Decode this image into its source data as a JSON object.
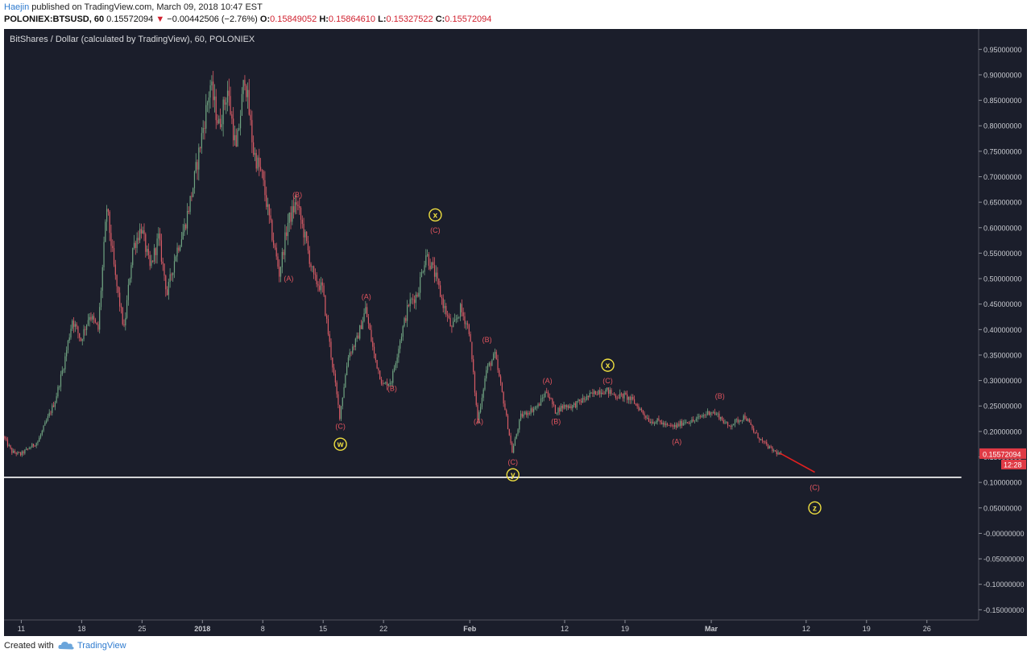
{
  "header": {
    "author": "Haejin",
    "published_text": "published on TradingView.com, March 09, 2018 10:47 EST",
    "symbol": "POLONIEX:BTSUSD, 60",
    "last_price": "0.15572094",
    "change_arrow": "▼",
    "change": "−0.00442506 (−2.76%)",
    "open_label": "O:",
    "open": "0.15849052",
    "high_label": "H:",
    "high": "0.15864610",
    "low_label": "L:",
    "low": "0.15327522",
    "close_label": "C:",
    "close": "0.15572094"
  },
  "footer": {
    "created_with": "Created with",
    "brand": "TradingView"
  },
  "colors": {
    "background": "#1b1e2b",
    "up_candle": "#6fa381",
    "down_candle": "#d95c66",
    "wave_label": "#e0545e",
    "degree_label": "#f0e040",
    "support_line": "#ffffff",
    "projection_line": "#e02020",
    "price_tag": "#e03a45"
  },
  "chart_data": {
    "type": "candlestick",
    "title": "BitShares / Dollar (calculated by TradingView), 60, POLONIEX",
    "interval": "60",
    "y_axis_position": "right",
    "ylim": [
      -0.17,
      0.99
    ],
    "y_ticks": [
      "0.95000000",
      "0.90000000",
      "0.85000000",
      "0.80000000",
      "0.75000000",
      "0.70000000",
      "0.65000000",
      "0.60000000",
      "0.55000000",
      "0.50000000",
      "0.45000000",
      "0.40000000",
      "0.35000000",
      "0.30000000",
      "0.25000000",
      "0.20000000",
      "0.15000000",
      "0.10000000",
      "0.05000000",
      "-0.00000000",
      "-0.05000000",
      "-0.10000000",
      "-0.15000000"
    ],
    "x_range": [
      "2017-12-09",
      "2018-04-01"
    ],
    "x_ticks": [
      {
        "date": "2017-12-11",
        "label": "11"
      },
      {
        "date": "2017-12-18",
        "label": "18"
      },
      {
        "date": "2017-12-25",
        "label": "25"
      },
      {
        "date": "2018-01-01",
        "label": "2018"
      },
      {
        "date": "2018-01-08",
        "label": "8"
      },
      {
        "date": "2018-01-15",
        "label": "15"
      },
      {
        "date": "2018-01-22",
        "label": "22"
      },
      {
        "date": "2018-02-01",
        "label": "Feb"
      },
      {
        "date": "2018-02-12",
        "label": "12"
      },
      {
        "date": "2018-02-19",
        "label": "19"
      },
      {
        "date": "2018-03-01",
        "label": "Mar"
      },
      {
        "date": "2018-03-12",
        "label": "12"
      },
      {
        "date": "2018-03-19",
        "label": "19"
      },
      {
        "date": "2018-03-26",
        "label": "26"
      }
    ],
    "price_path": [
      [
        "2017-12-09",
        0.19
      ],
      [
        "2017-12-10",
        0.16
      ],
      [
        "2017-12-11",
        0.155
      ],
      [
        "2017-12-13",
        0.18
      ],
      [
        "2017-12-15",
        0.26
      ],
      [
        "2017-12-16",
        0.33
      ],
      [
        "2017-12-17",
        0.42
      ],
      [
        "2017-12-18",
        0.38
      ],
      [
        "2017-12-19",
        0.43
      ],
      [
        "2017-12-20",
        0.4
      ],
      [
        "2017-12-21",
        0.64
      ],
      [
        "2017-12-22",
        0.5
      ],
      [
        "2017-12-23",
        0.4
      ],
      [
        "2017-12-24",
        0.56
      ],
      [
        "2017-12-25",
        0.6
      ],
      [
        "2017-12-26",
        0.52
      ],
      [
        "2017-12-27",
        0.58
      ],
      [
        "2017-12-28",
        0.47
      ],
      [
        "2017-12-29",
        0.55
      ],
      [
        "2017-12-30",
        0.6
      ],
      [
        "2017-12-31",
        0.68
      ],
      [
        "2018-01-01",
        0.78
      ],
      [
        "2018-01-02",
        0.88
      ],
      [
        "2018-01-03",
        0.8
      ],
      [
        "2018-01-04",
        0.87
      ],
      [
        "2018-01-05",
        0.75
      ],
      [
        "2018-01-06",
        0.9
      ],
      [
        "2018-01-07",
        0.75
      ],
      [
        "2018-01-08",
        0.7
      ],
      [
        "2018-01-09",
        0.6
      ],
      [
        "2018-01-10",
        0.51
      ],
      [
        "2018-01-11",
        0.61
      ],
      [
        "2018-01-12",
        0.65
      ],
      [
        "2018-01-13",
        0.58
      ],
      [
        "2018-01-14",
        0.5
      ],
      [
        "2018-01-15",
        0.48
      ],
      [
        "2018-01-16",
        0.35
      ],
      [
        "2018-01-17",
        0.23
      ],
      [
        "2018-01-18",
        0.35
      ],
      [
        "2018-01-19",
        0.38
      ],
      [
        "2018-01-20",
        0.44
      ],
      [
        "2018-01-21",
        0.35
      ],
      [
        "2018-01-22",
        0.29
      ],
      [
        "2018-01-23",
        0.3
      ],
      [
        "2018-01-24",
        0.38
      ],
      [
        "2018-01-25",
        0.45
      ],
      [
        "2018-01-26",
        0.47
      ],
      [
        "2018-01-27",
        0.55
      ],
      [
        "2018-01-28",
        0.51
      ],
      [
        "2018-01-29",
        0.45
      ],
      [
        "2018-01-30",
        0.4
      ],
      [
        "2018-01-31",
        0.44
      ],
      [
        "2018-02-01",
        0.4
      ],
      [
        "2018-02-02",
        0.22
      ],
      [
        "2018-02-03",
        0.32
      ],
      [
        "2018-02-04",
        0.35
      ],
      [
        "2018-02-05",
        0.26
      ],
      [
        "2018-02-06",
        0.16
      ],
      [
        "2018-02-07",
        0.23
      ],
      [
        "2018-02-08",
        0.24
      ],
      [
        "2018-02-09",
        0.25
      ],
      [
        "2018-02-10",
        0.28
      ],
      [
        "2018-02-11",
        0.24
      ],
      [
        "2018-02-12",
        0.25
      ],
      [
        "2018-02-13",
        0.25
      ],
      [
        "2018-02-14",
        0.26
      ],
      [
        "2018-02-15",
        0.27
      ],
      [
        "2018-02-16",
        0.28
      ],
      [
        "2018-02-17",
        0.28
      ],
      [
        "2018-02-18",
        0.27
      ],
      [
        "2018-02-19",
        0.27
      ],
      [
        "2018-02-20",
        0.26
      ],
      [
        "2018-02-21",
        0.24
      ],
      [
        "2018-02-22",
        0.22
      ],
      [
        "2018-02-23",
        0.22
      ],
      [
        "2018-02-24",
        0.21
      ],
      [
        "2018-02-25",
        0.21
      ],
      [
        "2018-02-26",
        0.22
      ],
      [
        "2018-02-27",
        0.22
      ],
      [
        "2018-02-28",
        0.23
      ],
      [
        "2018-03-01",
        0.24
      ],
      [
        "2018-03-02",
        0.23
      ],
      [
        "2018-03-03",
        0.21
      ],
      [
        "2018-03-04",
        0.22
      ],
      [
        "2018-03-05",
        0.23
      ],
      [
        "2018-03-06",
        0.2
      ],
      [
        "2018-03-07",
        0.18
      ],
      [
        "2018-03-08",
        0.165
      ],
      [
        "2018-03-09",
        0.155
      ]
    ],
    "last_price_tag": "0.15572094",
    "countdown_tag": "12:28",
    "support_line": {
      "value": 0.11,
      "from": "2017-12-09",
      "to": "2018-03-30"
    },
    "projection": {
      "from": [
        "2018-03-09",
        0.157
      ],
      "to": [
        "2018-03-13",
        0.12
      ]
    },
    "wave_labels": [
      {
        "text": "(B)",
        "date": "2018-01-12",
        "value": 0.66
      },
      {
        "text": "(A)",
        "date": "2018-01-11",
        "value": 0.495
      },
      {
        "text": "(A)",
        "date": "2018-01-20",
        "value": 0.46
      },
      {
        "text": "(C)",
        "date": "2018-01-17",
        "value": 0.205
      },
      {
        "text": "(B)",
        "date": "2018-01-23",
        "value": 0.28
      },
      {
        "text": "(C)",
        "date": "2018-01-28",
        "value": 0.59
      },
      {
        "text": "(B)",
        "date": "2018-02-03",
        "value": 0.375
      },
      {
        "text": "(A)",
        "date": "2018-02-02",
        "value": 0.215
      },
      {
        "text": "(C)",
        "date": "2018-02-06",
        "value": 0.135
      },
      {
        "text": "(A)",
        "date": "2018-02-10",
        "value": 0.295
      },
      {
        "text": "(B)",
        "date": "2018-02-11",
        "value": 0.215
      },
      {
        "text": "(C)",
        "date": "2018-02-17",
        "value": 0.295
      },
      {
        "text": "(A)",
        "date": "2018-02-25",
        "value": 0.175
      },
      {
        "text": "(B)",
        "date": "2018-03-02",
        "value": 0.265
      },
      {
        "text": "(C)",
        "date": "2018-03-13",
        "value": 0.085
      }
    ],
    "degree_labels": [
      {
        "text": "x",
        "date": "2018-01-28",
        "value": 0.625
      },
      {
        "text": "w",
        "date": "2018-01-17",
        "value": 0.175
      },
      {
        "text": "y",
        "date": "2018-02-06",
        "value": 0.115
      },
      {
        "text": "x",
        "date": "2018-02-17",
        "value": 0.33
      },
      {
        "text": "z",
        "date": "2018-03-13",
        "value": 0.05
      }
    ]
  }
}
